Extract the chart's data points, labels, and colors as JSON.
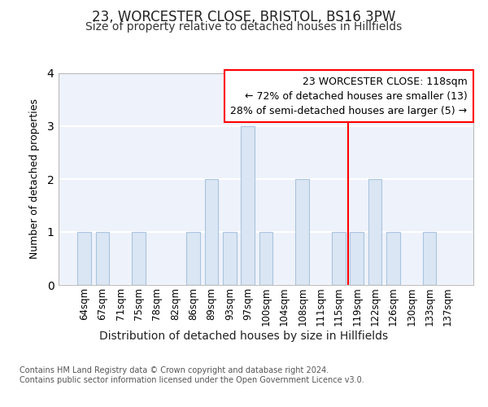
{
  "title": "23, WORCESTER CLOSE, BRISTOL, BS16 3PW",
  "subtitle": "Size of property relative to detached houses in Hillfields",
  "xlabel": "Distribution of detached houses by size in Hillfields",
  "ylabel": "Number of detached properties",
  "categories": [
    "64sqm",
    "67sqm",
    "71sqm",
    "75sqm",
    "78sqm",
    "82sqm",
    "86sqm",
    "89sqm",
    "93sqm",
    "97sqm",
    "100sqm",
    "104sqm",
    "108sqm",
    "111sqm",
    "115sqm",
    "119sqm",
    "122sqm",
    "126sqm",
    "130sqm",
    "133sqm",
    "137sqm"
  ],
  "values": [
    1,
    1,
    0,
    1,
    0,
    0,
    1,
    2,
    1,
    3,
    1,
    0,
    2,
    0,
    1,
    1,
    2,
    1,
    0,
    1,
    0
  ],
  "bar_color": "#dae6f3",
  "bar_edgecolor": "#aac4df",
  "background_color": "#eef2fb",
  "grid_color": "#ffffff",
  "red_line_x": 14.5,
  "annotation_text": "23 WORCESTER CLOSE: 118sqm\n← 72% of detached houses are smaller (13)\n28% of semi-detached houses are larger (5) →",
  "annotation_fontsize": 9,
  "ylim": [
    0,
    4
  ],
  "yticks": [
    0,
    1,
    2,
    3,
    4
  ],
  "footnote": "Contains HM Land Registry data © Crown copyright and database right 2024.\nContains public sector information licensed under the Open Government Licence v3.0.",
  "title_fontsize": 12,
  "subtitle_fontsize": 10,
  "xlabel_fontsize": 10,
  "ylabel_fontsize": 9
}
